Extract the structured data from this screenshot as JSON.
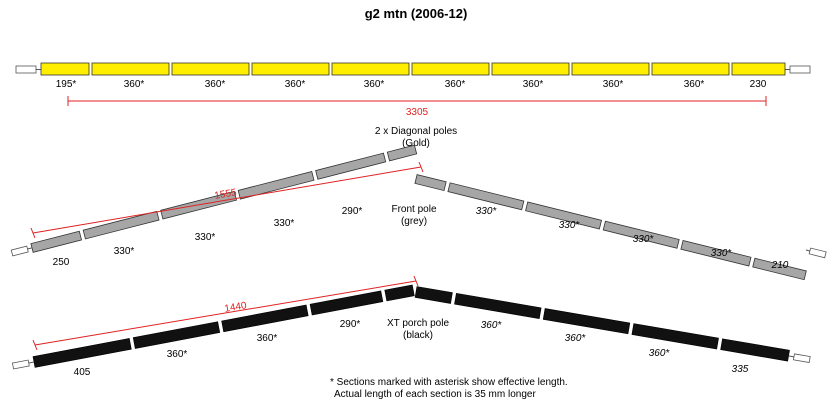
{
  "title": "g2 mtn (2006-12)",
  "colors": {
    "gold": "#ffee00",
    "grey": "#a6a6a6",
    "black": "#111111",
    "dimension": "#e02020"
  },
  "diagonal": {
    "sections": [
      "195*",
      "360*",
      "360*",
      "360*",
      "360*",
      "360*",
      "360*",
      "360*",
      "360*",
      "230"
    ],
    "total": "3305",
    "label_line1": "2 x Diagonal poles",
    "label_line2": "(Gold)"
  },
  "front": {
    "left_sections": [
      "250",
      "330*",
      "330*",
      "330*",
      "290*"
    ],
    "right_sections": [
      "330*",
      "330*",
      "330*",
      "330*",
      "210"
    ],
    "half_length": "1555",
    "label_line1": "Front pole",
    "label_line2": "(grey)"
  },
  "porch": {
    "left_sections": [
      "405",
      "360*",
      "360*",
      "290*"
    ],
    "right_sections": [
      "360*",
      "360*",
      "360*",
      "335"
    ],
    "half_length": "1440",
    "label_line1": "XT porch pole",
    "label_line2": "(black)"
  },
  "footnote_line1": "* Sections marked with asterisk show effective length.",
  "footnote_line2": "Actual length of each section is 35 mm longer"
}
